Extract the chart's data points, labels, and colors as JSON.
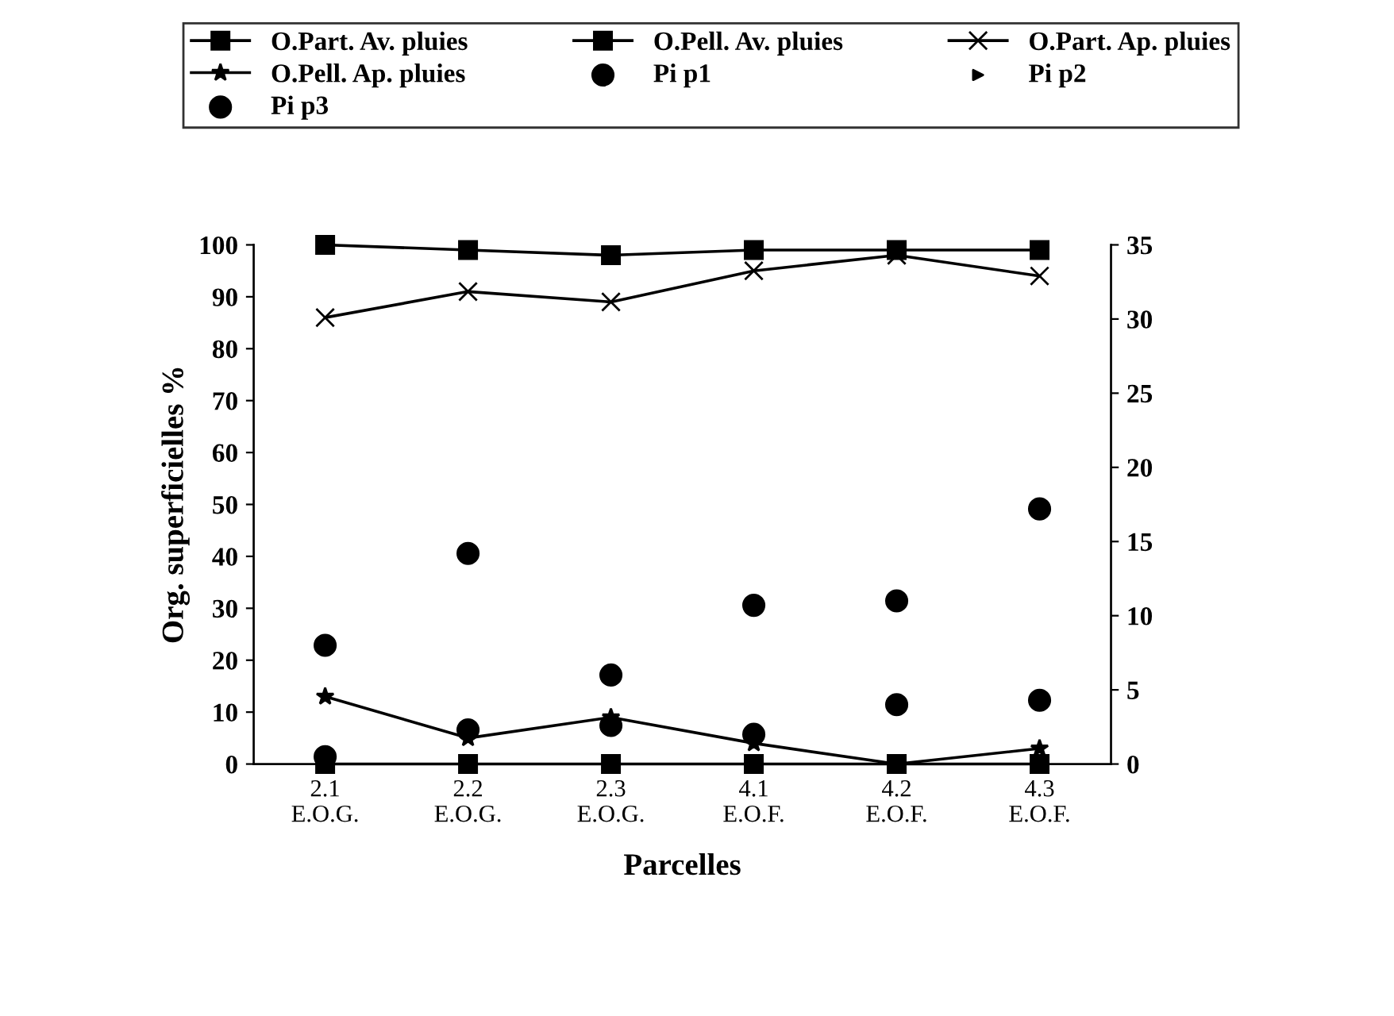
{
  "chart_data": {
    "type": "line",
    "xlabel": "Parcelles",
    "ylabel": "Org. superficielles %",
    "categories": [
      "2.1\nE.O.G.",
      "2.2\nE.O.G.",
      "2.3\nE.O.G.",
      "4.1\nE.O.F.",
      "4.2\nE.O.F.",
      "4.3\nE.O.F."
    ],
    "ylim": [
      0,
      100
    ],
    "yticks": [
      0,
      10,
      20,
      30,
      40,
      50,
      60,
      70,
      80,
      90,
      100
    ],
    "y2lim": [
      0,
      35
    ],
    "y2ticks": [
      0,
      5,
      10,
      15,
      20,
      25,
      30,
      35
    ],
    "grid": false,
    "legend": "top",
    "series": [
      {
        "name": "O.Part. Av. pluies",
        "color": "#000000",
        "marker": "square",
        "values": [
          100,
          99,
          98,
          99,
          99,
          99
        ]
      },
      {
        "name": "O.Pell. Av. pluies",
        "color": "#000000",
        "marker": "square",
        "values": [
          0,
          0,
          0,
          0,
          0,
          0
        ]
      },
      {
        "name": "O.Part. Ap. pluies",
        "color": "#000000",
        "marker": "cross",
        "values": [
          86,
          91,
          89,
          95,
          98,
          94
        ]
      },
      {
        "name": "O.Pell. Ap. pluies",
        "color": "#000000",
        "marker": "star",
        "values": [
          13,
          5,
          9,
          4,
          0,
          3
        ]
      },
      {
        "name": "Pi p1",
        "type": "scatter",
        "axis": "y2",
        "color": "#000000",
        "marker": "circle",
        "values": [
          8.0,
          14.2,
          6.0,
          10.7,
          11.0,
          17.2
        ]
      },
      {
        "name": "Pi p2",
        "type": "scatter",
        "axis": "y2",
        "color": "#000000",
        "marker": "triangle",
        "values": [
          null,
          null,
          null,
          null,
          null,
          null
        ]
      },
      {
        "name": "Pi p3",
        "type": "scatter",
        "axis": "y2",
        "color": "#000000",
        "marker": "circle",
        "values": [
          0.5,
          2.3,
          2.6,
          2.0,
          4.0,
          4.3
        ]
      }
    ]
  }
}
